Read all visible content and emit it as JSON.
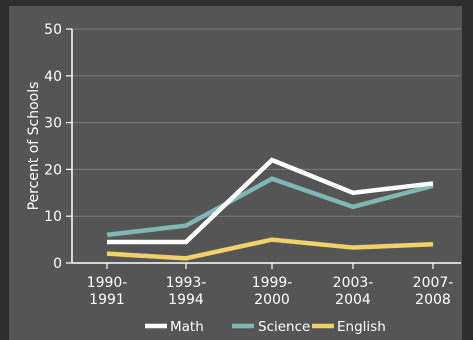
{
  "chart_data": {
    "type": "line",
    "title": "",
    "xlabel": "",
    "ylabel": "Percent of Schools",
    "ylim": [
      0,
      50
    ],
    "yticks": [
      "0",
      "10",
      "20",
      "30",
      "40",
      "50"
    ],
    "categories": [
      [
        "1990-",
        "1991"
      ],
      [
        "1993-",
        "1994"
      ],
      [
        "1999-",
        "2000"
      ],
      [
        "2003-",
        "2004"
      ],
      [
        "2007-",
        "2008"
      ]
    ],
    "grid": true,
    "legend": "bottom",
    "series": [
      {
        "name": "Math",
        "color": "#ffffff",
        "values": [
          4.5,
          4.5,
          22,
          15,
          17
        ]
      },
      {
        "name": "Science",
        "color": "#7fb7b5",
        "values": [
          6,
          8,
          18,
          12,
          16.5
        ]
      },
      {
        "name": "English",
        "color": "#f2d16b",
        "values": [
          2,
          1,
          5,
          3.3,
          4
        ]
      }
    ]
  }
}
